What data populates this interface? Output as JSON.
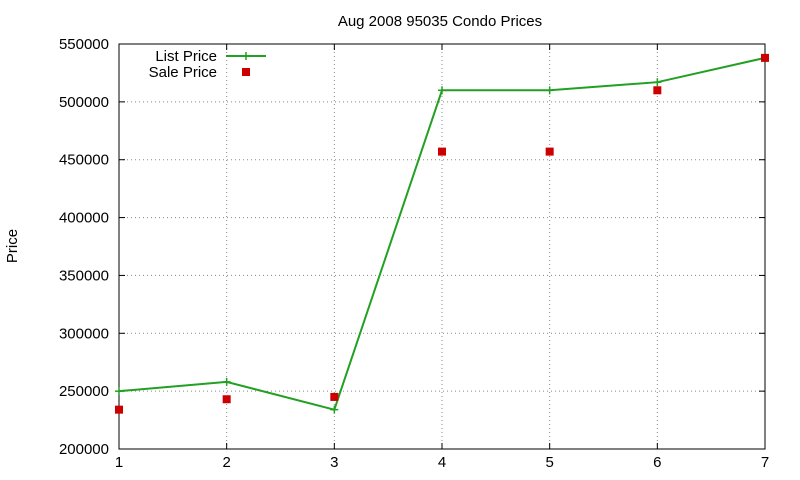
{
  "chart_data": {
    "type": "line",
    "title": "Aug 2008 95035 Condo Prices",
    "xlabel": "",
    "ylabel": "Price",
    "xlim": [
      1,
      7
    ],
    "ylim": [
      200000,
      550000
    ],
    "xticks": [
      1,
      2,
      3,
      4,
      5,
      6,
      7
    ],
    "yticks": [
      200000,
      250000,
      300000,
      350000,
      400000,
      450000,
      500000,
      550000
    ],
    "grid": true,
    "legend_position": "top-left",
    "series": [
      {
        "name": "List Price",
        "style": "line-with-plus-markers",
        "color": "#22a022",
        "x": [
          1,
          2,
          3,
          4,
          5,
          6,
          7
        ],
        "y": [
          250000,
          258000,
          234000,
          510000,
          510000,
          517000,
          538000
        ]
      },
      {
        "name": "Sale Price",
        "style": "square-markers",
        "color": "#cc0000",
        "x": [
          1,
          2,
          3,
          4,
          5,
          6,
          7
        ],
        "y": [
          234000,
          243000,
          245000,
          457000,
          457000,
          510000,
          538000
        ]
      }
    ]
  }
}
